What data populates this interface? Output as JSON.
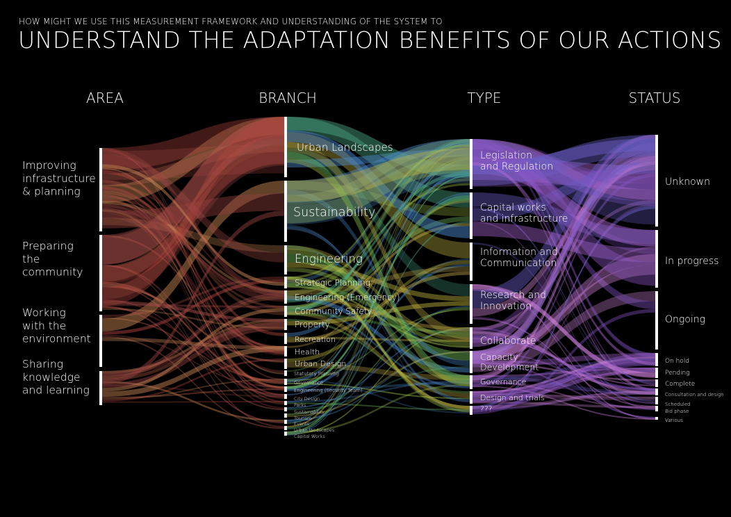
{
  "subtitle": "HOW MIGHT WE USE THIS MEASUREMENT FRAMEWORK AND UNDERSTANDING OF THE SYSTEM TO",
  "title": "UNDERSTAND THE ADAPTATION BENEFITS OF OUR ACTIONS",
  "headers": {
    "area": "AREA",
    "branch": "BRANCH",
    "type": "TYPE",
    "status": "STATUS"
  },
  "colors": {
    "background": "#000000",
    "text": "#ffffff",
    "area_flow": "#c0504d",
    "branch_flow": "#c9c040",
    "type_flow": "#a06ad0",
    "accent_green": "#6fc060",
    "accent_blue": "#4a78c8"
  },
  "columns": {
    "area": [
      {
        "lines": [
          "Improving",
          "infrastructure",
          "& planning"
        ]
      },
      {
        "lines": [
          "Preparing",
          "the",
          "community"
        ]
      },
      {
        "lines": [
          "Working",
          "with the",
          "environment"
        ]
      },
      {
        "lines": [
          "Sharing",
          "knowledge",
          "and learning"
        ]
      }
    ],
    "branch": [
      {
        "label": "Urban Landscapes"
      },
      {
        "label": "Sustainability"
      },
      {
        "label": "Engineering"
      },
      {
        "label": "Strategic Planning"
      },
      {
        "label": "Engineering (Emergency)"
      },
      {
        "label": "Community Safety"
      },
      {
        "label": "Property"
      },
      {
        "label": "Recreation"
      },
      {
        "label": "Health"
      },
      {
        "label": "Urban Design"
      },
      {
        "label": "Statutory Planning"
      },
      {
        "label": "Governance"
      },
      {
        "label": "Engineering (Security Team)"
      },
      {
        "label": "City Design"
      },
      {
        "label": "Parks"
      },
      {
        "label": "Sustainability"
      },
      {
        "label": "Tourism"
      },
      {
        "label": "Events"
      },
      {
        "label": "Urban landscapes"
      },
      {
        "label": "Capital Works"
      }
    ],
    "type": [
      {
        "lines": [
          "Legislation",
          "and Regulation"
        ]
      },
      {
        "lines": [
          "Capital works",
          "and infrastructure"
        ]
      },
      {
        "lines": [
          "Information and",
          "Communication"
        ]
      },
      {
        "lines": [
          "Research and",
          "Innovation"
        ]
      },
      {
        "lines": [
          "Collaborate"
        ]
      },
      {
        "lines": [
          "Capacity",
          "Development"
        ]
      },
      {
        "lines": [
          "Governance"
        ]
      },
      {
        "lines": [
          "Design and trials"
        ]
      },
      {
        "lines": [
          "???"
        ]
      }
    ],
    "status": [
      {
        "label": "Unknown"
      },
      {
        "label": "In progress"
      },
      {
        "label": "Ongoing"
      },
      {
        "label": "On hold"
      },
      {
        "label": "Pending"
      },
      {
        "label": "Complete"
      },
      {
        "label": "Consultation and design"
      },
      {
        "label": "Scheduled"
      },
      {
        "label": "Bid phase"
      },
      {
        "label": "Various"
      }
    ]
  }
}
